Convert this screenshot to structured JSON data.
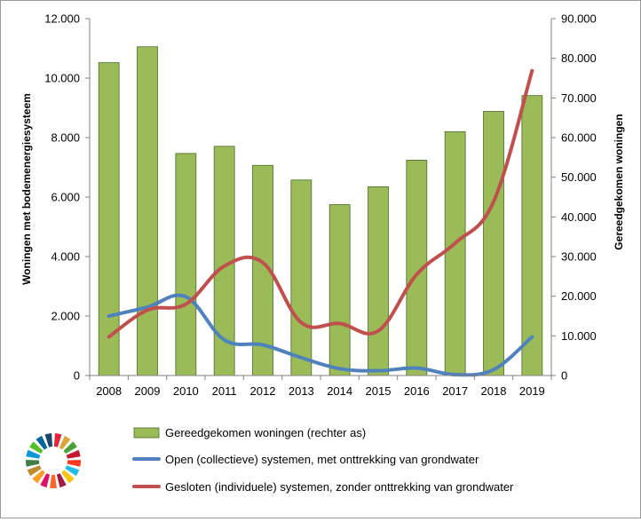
{
  "chart_data": {
    "type": "bar",
    "categories": [
      "2008",
      "2009",
      "2010",
      "2011",
      "2012",
      "2013",
      "2014",
      "2015",
      "2016",
      "2017",
      "2018",
      "2019"
    ],
    "series": [
      {
        "name": "Gereedgekomen woningen (rechter as)",
        "type": "bar",
        "axis": "right",
        "color": "#9bbb59",
        "values": [
          78900,
          82900,
          56000,
          57800,
          53000,
          49300,
          43100,
          47600,
          54300,
          61500,
          66600,
          70600
        ]
      },
      {
        "name": "Open (collectieve) systemen, met onttrekking van grondwater",
        "type": "line",
        "axis": "left",
        "color": "#4f81bd",
        "values": [
          2000,
          2300,
          2650,
          1200,
          1030,
          600,
          230,
          160,
          250,
          30,
          200,
          1300
        ]
      },
      {
        "name": "Gesloten (individuele) systemen, zonder onttrekking van grondwater",
        "type": "line",
        "axis": "left",
        "color": "#c0504d",
        "values": [
          1300,
          2200,
          2400,
          3680,
          3800,
          1780,
          1750,
          1500,
          3400,
          4450,
          5850,
          10250
        ]
      }
    ],
    "y_left": {
      "label": "Woningen met bodemenergiesysteem",
      "range": [
        0,
        12000
      ],
      "ticks": [
        "0",
        "2.000",
        "4.000",
        "6.000",
        "8.000",
        "10.000",
        "12.000"
      ]
    },
    "y_right": {
      "label": "Gereedgekomen woningen",
      "range": [
        0,
        90000
      ],
      "ticks": [
        "0",
        "10.000",
        "20.000",
        "30.000",
        "40.000",
        "50.000",
        "60.000",
        "70.000",
        "80.000",
        "90.000"
      ]
    },
    "legend_position": "bottom",
    "grid": false
  },
  "logo": {
    "name": "sdg-wheel-icon",
    "colors": [
      "#e5243b",
      "#dda63a",
      "#4c9f38",
      "#c5192d",
      "#ff3a21",
      "#26bde2",
      "#fcc30b",
      "#a21942",
      "#fd6925",
      "#dd1367",
      "#fd9d24",
      "#bf8b2e",
      "#3f7e44",
      "#0a97d9",
      "#56c02b",
      "#00689d",
      "#19486a"
    ]
  }
}
